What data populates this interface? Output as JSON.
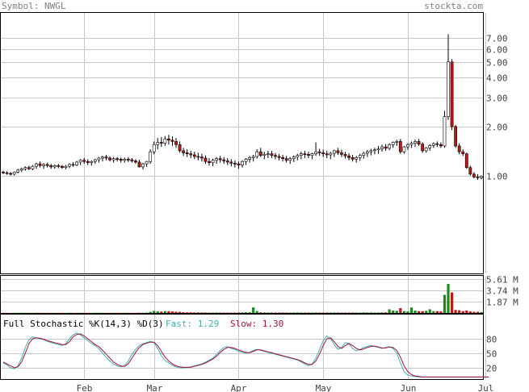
{
  "header": {
    "symbol_text": "Symbol: NWGL",
    "site": "stockta.com"
  },
  "colors": {
    "header_text": "#808080",
    "up_candle_fill": "#ffffff",
    "down_candle_fill": "#c01818",
    "volume_up": "#1a8a1a",
    "volume_down": "#c01818",
    "fast_line": "#40b0b0",
    "slow_line": "#a01040",
    "grid": "#c8c8c8",
    "axis_text": "#404040"
  },
  "stochastic": {
    "title": "Full Stochastic %K(14,3) %D(3)",
    "fast_label": "Fast: 1.29",
    "slow_label": "Slow: 1.30"
  },
  "chart_data": [
    {
      "type": "candlestick",
      "panel": "price",
      "y_scale": "log",
      "ylim": [
        0.25,
        10
      ],
      "y_ticks": [
        "7.00",
        "6.00",
        "5.00",
        "4.00",
        "3.00",
        "2.00",
        "1.00"
      ],
      "x_ticks": [
        "Feb",
        "Mar",
        "Apr",
        "May",
        "Jun",
        "Jul"
      ],
      "x_tick_index": [
        22,
        41,
        64,
        87,
        110,
        131
      ],
      "grid": true,
      "ohlc": [
        [
          1.05,
          1.07,
          1.02,
          1.04
        ],
        [
          1.04,
          1.06,
          1.01,
          1.03
        ],
        [
          1.03,
          1.05,
          1.0,
          1.02
        ],
        [
          1.02,
          1.06,
          1.0,
          1.05
        ],
        [
          1.05,
          1.1,
          1.03,
          1.08
        ],
        [
          1.08,
          1.12,
          1.05,
          1.1
        ],
        [
          1.1,
          1.14,
          1.07,
          1.12
        ],
        [
          1.12,
          1.15,
          1.08,
          1.1
        ],
        [
          1.1,
          1.16,
          1.08,
          1.14
        ],
        [
          1.14,
          1.2,
          1.1,
          1.18
        ],
        [
          1.18,
          1.22,
          1.12,
          1.15
        ],
        [
          1.15,
          1.19,
          1.1,
          1.17
        ],
        [
          1.17,
          1.2,
          1.12,
          1.15
        ],
        [
          1.15,
          1.18,
          1.1,
          1.13
        ],
        [
          1.13,
          1.17,
          1.1,
          1.15
        ],
        [
          1.15,
          1.18,
          1.11,
          1.14
        ],
        [
          1.14,
          1.16,
          1.1,
          1.12
        ],
        [
          1.12,
          1.16,
          1.09,
          1.14
        ],
        [
          1.14,
          1.19,
          1.11,
          1.17
        ],
        [
          1.17,
          1.21,
          1.13,
          1.16
        ],
        [
          1.16,
          1.23,
          1.14,
          1.21
        ],
        [
          1.21,
          1.26,
          1.16,
          1.24
        ],
        [
          1.24,
          1.28,
          1.18,
          1.22
        ],
        [
          1.22,
          1.26,
          1.16,
          1.2
        ],
        [
          1.2,
          1.24,
          1.15,
          1.22
        ],
        [
          1.22,
          1.27,
          1.18,
          1.25
        ],
        [
          1.25,
          1.3,
          1.2,
          1.28
        ],
        [
          1.28,
          1.32,
          1.22,
          1.3
        ],
        [
          1.3,
          1.34,
          1.24,
          1.28
        ],
        [
          1.28,
          1.31,
          1.22,
          1.25
        ],
        [
          1.25,
          1.3,
          1.2,
          1.27
        ],
        [
          1.27,
          1.3,
          1.22,
          1.26
        ],
        [
          1.26,
          1.29,
          1.2,
          1.24
        ],
        [
          1.24,
          1.29,
          1.2,
          1.26
        ],
        [
          1.26,
          1.3,
          1.21,
          1.25
        ],
        [
          1.25,
          1.28,
          1.2,
          1.23
        ],
        [
          1.23,
          1.26,
          1.18,
          1.21
        ],
        [
          1.21,
          1.25,
          1.12,
          1.13
        ],
        [
          1.13,
          1.2,
          1.09,
          1.18
        ],
        [
          1.18,
          1.23,
          1.13,
          1.22
        ],
        [
          1.22,
          1.45,
          1.18,
          1.4
        ],
        [
          1.4,
          1.62,
          1.35,
          1.55
        ],
        [
          1.55,
          1.7,
          1.45,
          1.6
        ],
        [
          1.6,
          1.72,
          1.5,
          1.58
        ],
        [
          1.58,
          1.75,
          1.52,
          1.68
        ],
        [
          1.68,
          1.78,
          1.55,
          1.65
        ],
        [
          1.65,
          1.74,
          1.52,
          1.62
        ],
        [
          1.62,
          1.7,
          1.48,
          1.55
        ],
        [
          1.55,
          1.62,
          1.38,
          1.42
        ],
        [
          1.42,
          1.48,
          1.32,
          1.38
        ],
        [
          1.38,
          1.45,
          1.3,
          1.36
        ],
        [
          1.36,
          1.42,
          1.28,
          1.34
        ],
        [
          1.34,
          1.4,
          1.26,
          1.31
        ],
        [
          1.31,
          1.38,
          1.24,
          1.3
        ],
        [
          1.3,
          1.36,
          1.22,
          1.28
        ],
        [
          1.28,
          1.33,
          1.18,
          1.22
        ],
        [
          1.22,
          1.28,
          1.15,
          1.2
        ],
        [
          1.2,
          1.27,
          1.14,
          1.24
        ],
        [
          1.24,
          1.3,
          1.18,
          1.27
        ],
        [
          1.27,
          1.32,
          1.2,
          1.25
        ],
        [
          1.25,
          1.3,
          1.18,
          1.23
        ],
        [
          1.23,
          1.28,
          1.16,
          1.21
        ],
        [
          1.21,
          1.26,
          1.14,
          1.19
        ],
        [
          1.19,
          1.24,
          1.12,
          1.18
        ],
        [
          1.18,
          1.22,
          1.1,
          1.16
        ],
        [
          1.16,
          1.24,
          1.12,
          1.22
        ],
        [
          1.22,
          1.28,
          1.16,
          1.26
        ],
        [
          1.26,
          1.32,
          1.2,
          1.29
        ],
        [
          1.29,
          1.34,
          1.22,
          1.31
        ],
        [
          1.31,
          1.45,
          1.27,
          1.4
        ],
        [
          1.4,
          1.48,
          1.3,
          1.33
        ],
        [
          1.33,
          1.4,
          1.26,
          1.35
        ],
        [
          1.35,
          1.42,
          1.28,
          1.36
        ],
        [
          1.36,
          1.42,
          1.28,
          1.33
        ],
        [
          1.33,
          1.38,
          1.26,
          1.31
        ],
        [
          1.31,
          1.36,
          1.24,
          1.29
        ],
        [
          1.29,
          1.34,
          1.22,
          1.27
        ],
        [
          1.27,
          1.32,
          1.2,
          1.24
        ],
        [
          1.24,
          1.3,
          1.18,
          1.27
        ],
        [
          1.27,
          1.33,
          1.21,
          1.3
        ],
        [
          1.3,
          1.36,
          1.24,
          1.33
        ],
        [
          1.33,
          1.4,
          1.26,
          1.36
        ],
        [
          1.36,
          1.42,
          1.28,
          1.35
        ],
        [
          1.35,
          1.4,
          1.28,
          1.33
        ],
        [
          1.33,
          1.38,
          1.26,
          1.36
        ],
        [
          1.36,
          1.6,
          1.32,
          1.4
        ],
        [
          1.4,
          1.46,
          1.32,
          1.38
        ],
        [
          1.38,
          1.44,
          1.3,
          1.36
        ],
        [
          1.36,
          1.42,
          1.28,
          1.34
        ],
        [
          1.34,
          1.4,
          1.26,
          1.37
        ],
        [
          1.37,
          1.44,
          1.3,
          1.42
        ],
        [
          1.42,
          1.48,
          1.34,
          1.38
        ],
        [
          1.38,
          1.44,
          1.3,
          1.35
        ],
        [
          1.35,
          1.4,
          1.27,
          1.32
        ],
        [
          1.32,
          1.37,
          1.24,
          1.29
        ],
        [
          1.29,
          1.34,
          1.22,
          1.26
        ],
        [
          1.26,
          1.32,
          1.2,
          1.29
        ],
        [
          1.29,
          1.36,
          1.23,
          1.33
        ],
        [
          1.33,
          1.4,
          1.27,
          1.37
        ],
        [
          1.37,
          1.44,
          1.3,
          1.4
        ],
        [
          1.4,
          1.46,
          1.33,
          1.42
        ],
        [
          1.42,
          1.48,
          1.35,
          1.44
        ],
        [
          1.44,
          1.52,
          1.36,
          1.46
        ],
        [
          1.46,
          1.55,
          1.4,
          1.5
        ],
        [
          1.5,
          1.56,
          1.42,
          1.47
        ],
        [
          1.47,
          1.58,
          1.43,
          1.55
        ],
        [
          1.55,
          1.62,
          1.48,
          1.6
        ],
        [
          1.6,
          1.66,
          1.52,
          1.62
        ],
        [
          1.62,
          1.68,
          1.36,
          1.4
        ],
        [
          1.4,
          1.52,
          1.36,
          1.5
        ],
        [
          1.5,
          1.58,
          1.44,
          1.55
        ],
        [
          1.55,
          1.62,
          1.48,
          1.58
        ],
        [
          1.58,
          1.66,
          1.5,
          1.62
        ],
        [
          1.62,
          1.68,
          1.52,
          1.56
        ],
        [
          1.56,
          1.6,
          1.38,
          1.42
        ],
        [
          1.42,
          1.5,
          1.38,
          1.48
        ],
        [
          1.48,
          1.56,
          1.42,
          1.53
        ],
        [
          1.53,
          1.6,
          1.48,
          1.57
        ],
        [
          1.57,
          1.62,
          1.5,
          1.55
        ],
        [
          1.55,
          1.6,
          1.48,
          1.52
        ],
        [
          1.52,
          2.5,
          1.48,
          2.3
        ],
        [
          2.3,
          7.4,
          2.2,
          5.0
        ],
        [
          5.0,
          5.2,
          1.9,
          2.0
        ],
        [
          2.0,
          2.05,
          1.48,
          1.52
        ],
        [
          1.52,
          1.58,
          1.35,
          1.4
        ],
        [
          1.4,
          1.45,
          1.32,
          1.36
        ],
        [
          1.36,
          1.38,
          1.1,
          1.12
        ],
        [
          1.12,
          1.15,
          1.0,
          1.02
        ],
        [
          1.02,
          1.05,
          0.96,
          0.98
        ],
        [
          0.98,
          1.02,
          0.94,
          0.97
        ],
        [
          0.97,
          1.0,
          0.95,
          0.99
        ]
      ],
      "volume_millions": [
        0.02,
        0.02,
        0.01,
        0.02,
        0.02,
        0.03,
        0.02,
        0.02,
        0.02,
        0.03,
        0.02,
        0.02,
        0.02,
        0.02,
        0.02,
        0.02,
        0.02,
        0.02,
        0.03,
        0.02,
        0.03,
        0.03,
        0.02,
        0.02,
        0.02,
        0.03,
        0.03,
        0.03,
        0.02,
        0.02,
        0.02,
        0.02,
        0.02,
        0.03,
        0.02,
        0.02,
        0.02,
        0.04,
        0.03,
        0.05,
        0.18,
        0.34,
        0.26,
        0.22,
        0.3,
        0.28,
        0.24,
        0.2,
        0.18,
        0.12,
        0.1,
        0.1,
        0.08,
        0.08,
        0.07,
        0.06,
        0.06,
        0.06,
        0.07,
        0.06,
        0.06,
        0.05,
        0.05,
        0.06,
        0.06,
        0.08,
        0.12,
        0.1,
        0.92,
        0.3,
        0.1,
        0.08,
        0.08,
        0.07,
        0.06,
        0.06,
        0.06,
        0.06,
        0.06,
        0.07,
        0.08,
        0.07,
        0.06,
        0.06,
        0.06,
        0.08,
        0.07,
        0.06,
        0.06,
        0.07,
        0.07,
        0.06,
        0.06,
        0.06,
        0.06,
        0.07,
        0.07,
        0.06,
        0.08,
        0.07,
        0.08,
        0.07,
        0.07,
        0.08,
        0.08,
        0.6,
        0.4,
        0.35,
        0.8,
        0.3,
        0.25,
        0.9,
        0.4,
        0.3,
        0.3,
        0.35,
        0.6,
        0.3,
        0.3,
        0.25,
        3.0,
        4.8,
        3.4,
        0.5,
        0.45,
        0.3,
        0.4,
        0.25,
        0.2,
        0.18,
        0.15
      ],
      "volume_ticks": [
        "5.61 M",
        "3.74 M",
        "1.87 M"
      ]
    },
    {
      "type": "line",
      "panel": "stochastic",
      "ylim": [
        0,
        100
      ],
      "y_ticks": [
        "80",
        "50",
        "20"
      ],
      "series": [
        {
          "name": "Fast",
          "values": [
            30,
            26,
            20,
            18,
            24,
            40,
            62,
            78,
            84,
            82,
            80,
            78,
            75,
            72,
            70,
            68,
            66,
            70,
            80,
            88,
            92,
            88,
            82,
            76,
            70,
            66,
            60,
            50,
            42,
            34,
            28,
            24,
            22,
            24,
            34,
            48,
            58,
            66,
            70,
            72,
            75,
            72,
            60,
            45,
            35,
            30,
            25,
            22,
            20,
            20,
            21,
            22,
            24,
            26,
            28,
            32,
            36,
            40,
            48,
            56,
            62,
            64,
            60,
            58,
            54,
            52,
            50,
            52,
            56,
            58,
            56,
            54,
            52,
            50,
            48,
            46,
            44,
            42,
            40,
            38,
            36,
            32,
            28,
            24,
            28,
            40,
            58,
            76,
            86,
            80,
            68,
            58,
            62,
            72,
            70,
            60,
            55,
            58,
            62,
            64,
            66,
            64,
            62,
            60,
            62,
            64,
            60,
            50,
            30,
            12,
            5,
            3,
            2,
            1,
            1,
            1,
            1,
            1,
            1,
            1,
            1,
            1,
            1,
            1,
            1,
            1,
            1,
            1,
            1,
            1,
            1,
            1,
            1
          ]
        },
        {
          "name": "Slow",
          "values": [
            32,
            28,
            24,
            20,
            22,
            32,
            50,
            70,
            80,
            82,
            81,
            79,
            76,
            74,
            72,
            70,
            68,
            68,
            74,
            84,
            89,
            90,
            86,
            80,
            74,
            68,
            64,
            56,
            48,
            40,
            32,
            27,
            24,
            23,
            28,
            40,
            52,
            62,
            68,
            71,
            73,
            73,
            66,
            54,
            42,
            34,
            28,
            24,
            22,
            21,
            21,
            21,
            23,
            25,
            27,
            30,
            34,
            38,
            44,
            52,
            58,
            62,
            62,
            60,
            57,
            54,
            52,
            51,
            54,
            57,
            57,
            55,
            53,
            51,
            49,
            47,
            45,
            43,
            41,
            39,
            37,
            34,
            30,
            27,
            27,
            34,
            48,
            66,
            80,
            82,
            74,
            64,
            60,
            66,
            70,
            66,
            60,
            57,
            59,
            62,
            64,
            65,
            63,
            61,
            61,
            63,
            62,
            56,
            42,
            24,
            12,
            6,
            3,
            2,
            1,
            1,
            1,
            1,
            1,
            1,
            1,
            1,
            1,
            1,
            1,
            1,
            1,
            1,
            1,
            1,
            1,
            1,
            1
          ]
        }
      ]
    }
  ]
}
